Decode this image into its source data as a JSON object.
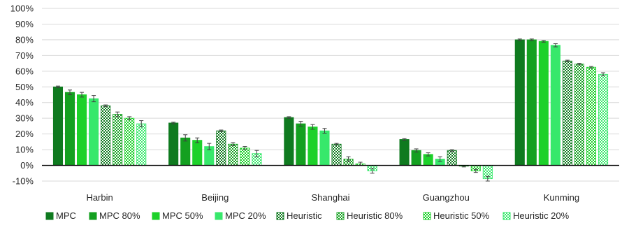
{
  "chart_data": {
    "type": "bar",
    "title": "",
    "xlabel": "",
    "ylabel": "",
    "ylim": [
      -10,
      100
    ],
    "y_ticks": [
      -10,
      0,
      10,
      20,
      30,
      40,
      50,
      60,
      70,
      80,
      90,
      100
    ],
    "y_tick_labels": [
      "-10%",
      "0%",
      "10%",
      "20%",
      "30%",
      "40%",
      "50%",
      "60%",
      "70%",
      "80%",
      "90%",
      "100%"
    ],
    "categories": [
      "Harbin",
      "Beijing",
      "Shanghai",
      "Guangzhou",
      "Kunming"
    ],
    "grid": "horizontal",
    "legend_position": "bottom",
    "error_bars": true,
    "series": [
      {
        "name": "MPC",
        "color": "#0f7a1f",
        "pattern": "solid",
        "values": [
          50,
          27,
          30.5,
          16.5,
          80
        ],
        "errors": [
          0.5,
          0.5,
          0.5,
          0.5,
          0.5
        ]
      },
      {
        "name": "MPC 80%",
        "color": "#14a020",
        "pattern": "solid",
        "values": [
          46.5,
          17.5,
          26.5,
          9.5,
          80
        ],
        "errors": [
          1.5,
          2,
          1.5,
          1,
          0.5
        ]
      },
      {
        "name": "MPC 50%",
        "color": "#1dd12a",
        "pattern": "solid",
        "values": [
          45,
          16,
          24.5,
          7,
          79
        ],
        "errors": [
          1.5,
          1.5,
          1.5,
          1,
          0.5
        ]
      },
      {
        "name": "MPC 20%",
        "color": "#37e86b",
        "pattern": "solid",
        "values": [
          42.5,
          12,
          22,
          4,
          76.5
        ],
        "errors": [
          2,
          2,
          1.5,
          1.5,
          1
        ]
      },
      {
        "name": "Heuristic",
        "color": "#0f7a1f",
        "pattern": "hatch",
        "values": [
          38,
          22,
          13.5,
          9.5,
          66.5
        ],
        "errors": [
          0.5,
          0.5,
          0.5,
          0.5,
          0.5
        ]
      },
      {
        "name": "Heuristic 80%",
        "color": "#14a020",
        "pattern": "hatch",
        "values": [
          32.5,
          13.5,
          4,
          -0.5,
          64.5
        ],
        "errors": [
          1.5,
          1,
          1.5,
          0.5,
          0.5
        ]
      },
      {
        "name": "Heuristic 50%",
        "color": "#1dd12a",
        "pattern": "hatch",
        "values": [
          30,
          11,
          1,
          -3.5,
          62.5
        ],
        "errors": [
          1,
          1,
          1,
          1,
          0.5
        ]
      },
      {
        "name": "Heuristic 20%",
        "color": "#37e86b",
        "pattern": "hatch",
        "values": [
          26.5,
          7.5,
          -3.5,
          -8.5,
          58
        ],
        "errors": [
          2,
          2,
          1.5,
          1.5,
          1
        ]
      }
    ]
  }
}
